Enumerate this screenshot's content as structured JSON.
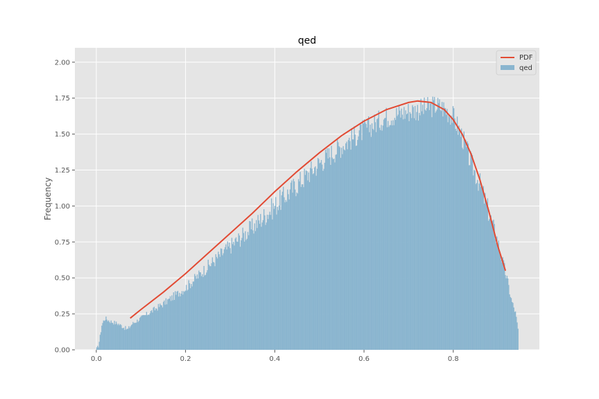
{
  "chart_data": {
    "type": "bar",
    "title": "qed",
    "xlabel": "",
    "ylabel": "Frequency",
    "xlim": [
      -0.048,
      0.993
    ],
    "ylim": [
      0,
      2.1
    ],
    "x_ticks": [
      0.0,
      0.2,
      0.4,
      0.6,
      0.8
    ],
    "x_tick_labels": [
      "0.0",
      "0.2",
      "0.4",
      "0.6",
      "0.8"
    ],
    "y_ticks": [
      0,
      0.25,
      0.5,
      0.75,
      1.0,
      1.25,
      1.5,
      1.75,
      2.0
    ],
    "y_tick_labels": [
      "0.00",
      "0.25",
      "0.50",
      "0.75",
      "1.00",
      "1.25",
      "1.50",
      "1.75",
      "2.00"
    ],
    "grid": true,
    "legend_position": "top-right",
    "legend": [
      "PDF",
      "qed"
    ],
    "series": [
      {
        "name": "qed",
        "kind": "histogram",
        "color": "#8ab5cf",
        "bin_range": [
          0.0,
          0.946
        ],
        "envelope": [
          [
            0.0,
            0.0
          ],
          [
            0.004,
            0.02
          ],
          [
            0.008,
            0.08
          ],
          [
            0.012,
            0.17
          ],
          [
            0.016,
            0.2
          ],
          [
            0.02,
            0.22
          ],
          [
            0.03,
            0.2
          ],
          [
            0.04,
            0.19
          ],
          [
            0.05,
            0.18
          ],
          [
            0.06,
            0.16
          ],
          [
            0.07,
            0.14
          ],
          [
            0.08,
            0.18
          ],
          [
            0.1,
            0.22
          ],
          [
            0.15,
            0.32
          ],
          [
            0.2,
            0.43
          ],
          [
            0.25,
            0.58
          ],
          [
            0.3,
            0.72
          ],
          [
            0.35,
            0.85
          ],
          [
            0.4,
            1.0
          ],
          [
            0.45,
            1.15
          ],
          [
            0.5,
            1.3
          ],
          [
            0.55,
            1.42
          ],
          [
            0.6,
            1.53
          ],
          [
            0.65,
            1.62
          ],
          [
            0.7,
            1.66
          ],
          [
            0.74,
            1.68
          ],
          [
            0.76,
            1.7
          ],
          [
            0.78,
            1.68
          ],
          [
            0.8,
            1.62
          ],
          [
            0.82,
            1.48
          ],
          [
            0.84,
            1.3
          ],
          [
            0.86,
            1.15
          ],
          [
            0.88,
            0.95
          ],
          [
            0.9,
            0.75
          ],
          [
            0.91,
            0.62
          ],
          [
            0.92,
            0.5
          ],
          [
            0.93,
            0.35
          ],
          [
            0.94,
            0.25
          ],
          [
            0.946,
            0.12
          ]
        ]
      },
      {
        "name": "PDF",
        "kind": "line",
        "color": "#e24a33",
        "points": [
          [
            0.076,
            0.22
          ],
          [
            0.1,
            0.28
          ],
          [
            0.15,
            0.4
          ],
          [
            0.2,
            0.53
          ],
          [
            0.25,
            0.67
          ],
          [
            0.3,
            0.81
          ],
          [
            0.35,
            0.95
          ],
          [
            0.4,
            1.1
          ],
          [
            0.45,
            1.24
          ],
          [
            0.5,
            1.37
          ],
          [
            0.55,
            1.49
          ],
          [
            0.6,
            1.59
          ],
          [
            0.65,
            1.67
          ],
          [
            0.7,
            1.72
          ],
          [
            0.72,
            1.73
          ],
          [
            0.75,
            1.72
          ],
          [
            0.78,
            1.67
          ],
          [
            0.8,
            1.6
          ],
          [
            0.82,
            1.5
          ],
          [
            0.84,
            1.36
          ],
          [
            0.86,
            1.18
          ],
          [
            0.88,
            0.96
          ],
          [
            0.9,
            0.72
          ],
          [
            0.917,
            0.55
          ]
        ]
      }
    ]
  }
}
